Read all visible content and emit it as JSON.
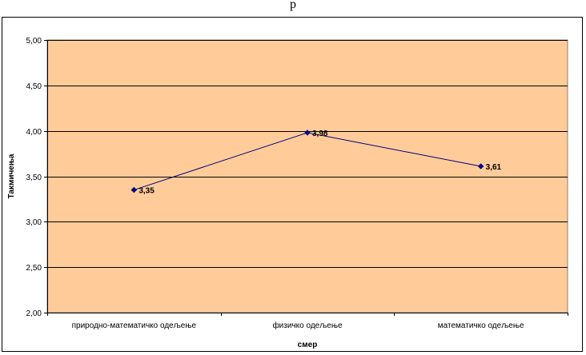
{
  "page": {
    "top_title": "р"
  },
  "colors": {
    "plot_background": "#FFCC99",
    "gridline": "#000000",
    "series_line": "#000080"
  },
  "chart_data": {
    "type": "line",
    "categories": [
      "природно-математичко одељење",
      "физичко одељење",
      "математичко одељење"
    ],
    "series": [
      {
        "values": [
          3.35,
          3.98,
          3.61
        ],
        "data_labels": [
          "3,35",
          "3,98",
          "3,61"
        ]
      }
    ],
    "title": "",
    "xlabel": "смер",
    "ylabel": "Такмичења",
    "ylim": [
      2.0,
      5.0
    ],
    "y_ticks": [
      2.0,
      2.5,
      3.0,
      3.5,
      4.0,
      4.5,
      5.0
    ],
    "y_tick_labels": [
      "2,00",
      "2,50",
      "3,00",
      "3,50",
      "4,00",
      "4,50",
      "5,00"
    ],
    "grid": true,
    "legend": "none",
    "marker": "diamond"
  }
}
